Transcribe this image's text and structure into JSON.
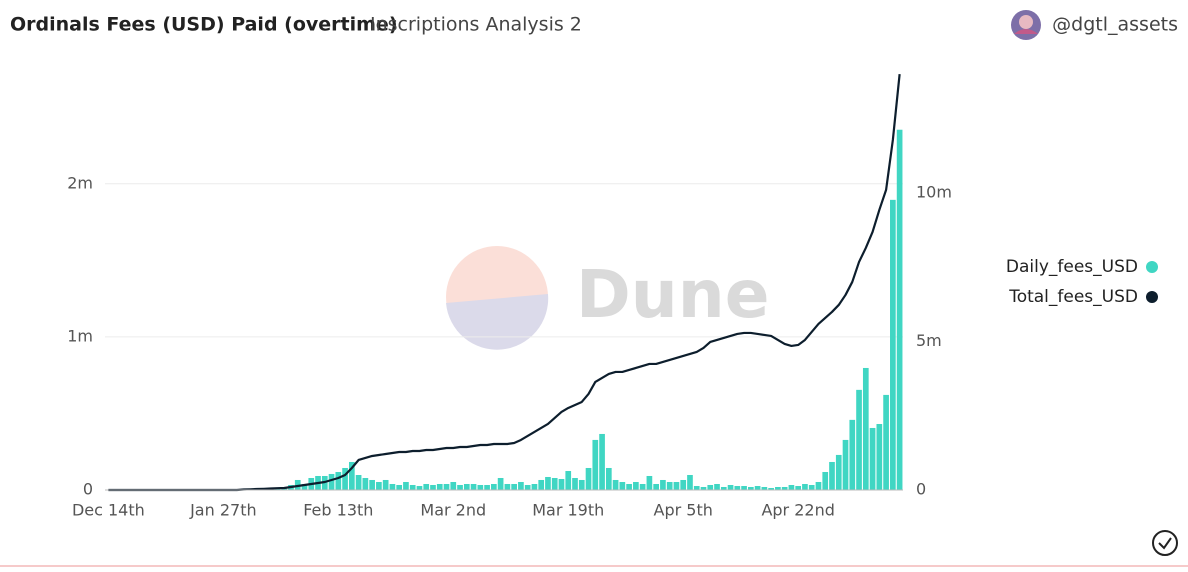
{
  "header": {
    "author": "@dgtl_assets"
  },
  "watermark": "Dune",
  "chart_data": {
    "type": "bar-line",
    "title": "Ordinals Fees (USD) Paid (overtime)",
    "subtitle": "Inscriptions Analysis 2",
    "categories": [
      "Dec 14th",
      null,
      null,
      null,
      null,
      null,
      null,
      null,
      null,
      null,
      null,
      null,
      null,
      null,
      null,
      null,
      null,
      "Jan 27th",
      null,
      null,
      null,
      null,
      null,
      null,
      null,
      null,
      null,
      null,
      null,
      null,
      null,
      null,
      null,
      null,
      "Feb 13th",
      null,
      null,
      null,
      null,
      null,
      null,
      null,
      null,
      null,
      null,
      null,
      null,
      null,
      null,
      null,
      null,
      "Mar 2nd",
      null,
      null,
      null,
      null,
      null,
      null,
      null,
      null,
      null,
      null,
      null,
      null,
      null,
      null,
      null,
      null,
      "Mar 19th",
      null,
      null,
      null,
      null,
      null,
      null,
      null,
      null,
      null,
      null,
      null,
      null,
      null,
      null,
      null,
      null,
      "Apr 5th",
      null,
      null,
      null,
      null,
      null,
      null,
      null,
      null,
      null,
      null,
      null,
      null,
      null,
      null,
      null,
      null,
      "Apr 22nd",
      null,
      null,
      null,
      null,
      null,
      null,
      null,
      null,
      null,
      null,
      null,
      null,
      null,
      null,
      null
    ],
    "series": [
      {
        "name": "Daily_fees_USD",
        "color": "#40d6c3",
        "kind": "bar",
        "values": [
          0,
          0,
          0,
          0,
          0,
          0,
          0,
          0,
          0,
          0,
          0,
          0,
          0,
          0,
          0,
          0,
          0,
          0,
          0,
          0,
          2000,
          3000,
          2000,
          4000,
          5000,
          8000,
          15000,
          32700,
          65400,
          39200,
          78400,
          91500,
          91500,
          104600,
          117600,
          143800,
          183000,
          98000,
          78400,
          65400,
          52300,
          65400,
          39200,
          32700,
          52300,
          32700,
          26000,
          39200,
          32700,
          39200,
          39200,
          52300,
          32700,
          39200,
          39200,
          32700,
          32700,
          39200,
          78400,
          39200,
          39200,
          52300,
          32700,
          39200,
          65400,
          85000,
          78400,
          71900,
          124000,
          78400,
          65400,
          143800,
          327000,
          366000,
          143800,
          65400,
          52300,
          39200,
          52300,
          39200,
          91500,
          39200,
          65400,
          52300,
          52300,
          65400,
          98000,
          26000,
          19600,
          32700,
          39200,
          19600,
          32700,
          26000,
          26000,
          19600,
          26000,
          19600,
          13000,
          19600,
          19600,
          32700,
          26000,
          39200,
          32700,
          52300,
          117600,
          183000,
          229000,
          327000,
          458000,
          654000,
          797000,
          405000,
          431000,
          621000,
          1895000,
          2353000
        ]
      },
      {
        "name": "Total_fees_USD",
        "color": "#0d1e2d",
        "kind": "line",
        "axis": "y2",
        "values": [
          0,
          0,
          0,
          0,
          0,
          0,
          0,
          0,
          0,
          0,
          0,
          0,
          0,
          0,
          0,
          0,
          0,
          0,
          0,
          0,
          16800,
          23600,
          33700,
          40400,
          50500,
          60600,
          67300,
          101000,
          134700,
          168400,
          202000,
          235700,
          269400,
          336700,
          404000,
          505000,
          740700,
          1010100,
          1077400,
          1144800,
          1178500,
          1212100,
          1245800,
          1279500,
          1279500,
          1313100,
          1313100,
          1346800,
          1346800,
          1380500,
          1414100,
          1414100,
          1447800,
          1447800,
          1481500,
          1515200,
          1515200,
          1548800,
          1548800,
          1548800,
          1582500,
          1683500,
          1818200,
          1952900,
          2087500,
          2222200,
          2424200,
          2626300,
          2760900,
          2862000,
          2963000,
          3232300,
          3636400,
          3771000,
          3905700,
          3973100,
          3973100,
          4040400,
          4107700,
          4175100,
          4242400,
          4242400,
          4309800,
          4377100,
          4444400,
          4511800,
          4579100,
          4646500,
          4781100,
          4983200,
          5050500,
          5117800,
          5185200,
          5252500,
          5286200,
          5286200,
          5252500,
          5218900,
          5185200,
          5050500,
          4915800,
          4848500,
          4882200,
          5050500,
          5319900,
          5589200,
          5791200,
          5993300,
          6229000,
          6565700,
          7003400,
          7676800,
          8148200,
          8686900,
          9427600,
          10101000,
          11784500,
          14000000
        ]
      }
    ],
    "ylim": [
      0,
      2730000
    ],
    "yticks": [
      0,
      {
        "value": 1000000,
        "label": "1m"
      },
      {
        "value": 2000000,
        "label": "2m"
      }
    ],
    "y2lim": [
      0,
      14070000
    ],
    "y2ticks": [
      0,
      {
        "value": 5000000,
        "label": "5m"
      },
      {
        "value": 10000000,
        "label": "10m"
      }
    ],
    "grid": true,
    "legend": "right"
  }
}
